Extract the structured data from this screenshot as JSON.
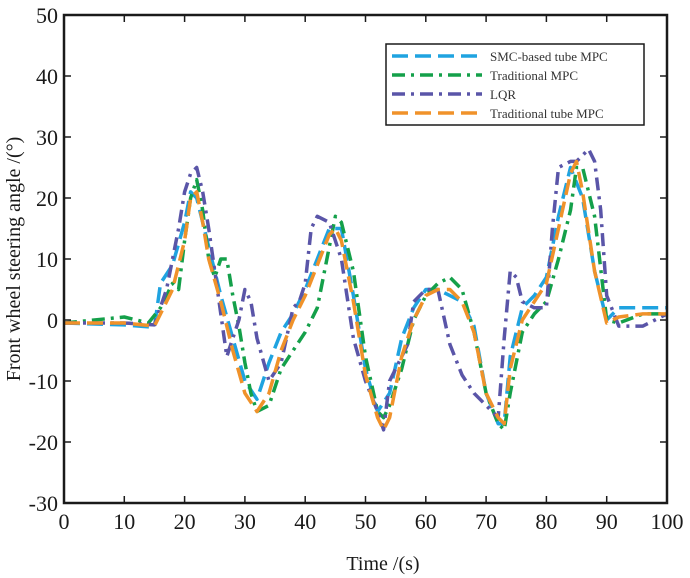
{
  "chart_data": {
    "type": "line",
    "xlabel": "Time /(s)",
    "ylabel": "Front wheel steering angle /(°)",
    "xlim": [
      0,
      100
    ],
    "ylim": [
      -30,
      50
    ],
    "xticks": [
      0,
      10,
      20,
      30,
      40,
      50,
      60,
      70,
      80,
      90,
      100
    ],
    "yticks": [
      -30,
      -20,
      -10,
      0,
      10,
      20,
      30,
      40,
      50
    ],
    "grid": false,
    "legend_position": "top-right",
    "series": [
      {
        "name": "SMC-based tube MPC",
        "color": "#1fa3e0",
        "dash": "long-dash",
        "x": [
          0,
          10,
          15,
          16,
          18,
          20,
          21,
          22,
          24,
          26,
          28,
          30,
          32,
          34,
          36,
          38,
          40,
          42,
          44,
          46,
          48,
          50,
          52,
          54,
          56,
          58,
          60,
          62,
          64,
          66,
          68,
          70,
          72,
          73,
          74,
          76,
          78,
          80,
          82,
          84,
          86,
          88,
          90,
          92,
          96,
          100
        ],
        "y": [
          -0.5,
          -0.8,
          -1.2,
          6,
          9,
          16,
          21,
          20,
          12,
          4,
          -3,
          -10,
          -13,
          -7,
          -2,
          1,
          5,
          10,
          15,
          15,
          4,
          -8,
          -15,
          -12,
          -3,
          2,
          5,
          5,
          4,
          3,
          -1,
          -12,
          -17,
          -17,
          -6,
          2,
          4,
          7,
          17,
          25,
          20,
          8,
          0,
          2,
          2,
          2
        ]
      },
      {
        "name": "Traditional MPC",
        "color": "#14a04a",
        "dash": "dash-dot",
        "x": [
          0,
          10,
          14,
          16,
          18,
          19,
          20,
          21,
          22,
          23,
          24,
          25,
          26,
          27,
          28,
          29,
          30,
          31,
          32,
          34,
          36,
          38,
          40,
          42,
          44,
          45,
          46,
          48,
          50,
          52,
          53,
          54,
          56,
          58,
          60,
          62,
          64,
          66,
          68,
          70,
          72,
          73,
          74,
          76,
          78,
          80,
          82,
          84,
          85,
          86,
          88,
          90,
          92,
          96,
          100
        ],
        "y": [
          -0.5,
          0.5,
          -0.5,
          2,
          6,
          5,
          13,
          20,
          23,
          18,
          10,
          7,
          10,
          10,
          4,
          -1,
          -7,
          -12,
          -15,
          -14,
          -8,
          -5,
          -2,
          2,
          12,
          17,
          16,
          8,
          -6,
          -15,
          -16,
          -14,
          -8,
          0,
          4,
          6,
          7,
          5,
          -2,
          -12,
          -17,
          -18,
          -12,
          -2,
          1,
          3,
          10,
          18,
          25,
          25,
          17,
          0,
          -0.5,
          1,
          1
        ]
      },
      {
        "name": "LQR",
        "color": "#5a55a8",
        "dash": "dash-dot",
        "x": [
          0,
          10,
          15,
          17,
          19,
          20,
          21,
          22,
          23,
          24,
          25,
          26,
          27,
          28,
          29,
          30,
          31,
          32,
          34,
          36,
          38,
          39,
          40,
          41,
          42,
          44,
          46,
          48,
          50,
          52,
          53,
          54,
          56,
          57,
          58,
          60,
          62,
          64,
          66,
          68,
          70,
          72,
          73,
          74,
          75,
          76,
          78,
          80,
          81,
          82,
          84,
          85,
          86,
          87,
          88,
          89,
          90,
          92,
          96,
          100
        ],
        "y": [
          -0.5,
          -0.5,
          -0.8,
          5,
          15,
          21,
          24,
          25,
          21,
          15,
          8,
          1,
          -6,
          -3,
          0,
          5,
          3,
          -3,
          -10,
          -7,
          2,
          3,
          6,
          15,
          17,
          16,
          10,
          -3,
          -10,
          -15,
          -18,
          -10,
          -6,
          -4,
          3,
          5,
          5,
          -4,
          -9,
          -12,
          -14,
          -16,
          -3,
          8,
          7,
          3,
          2,
          2,
          15,
          25,
          26,
          26,
          27,
          28,
          26,
          18,
          4,
          -1,
          -1,
          1
        ]
      },
      {
        "name": "Traditional tube MPC",
        "color": "#f0922a",
        "dash": "long-dash",
        "x": [
          0,
          10,
          15,
          16,
          18,
          20,
          21,
          22,
          23,
          24,
          26,
          28,
          30,
          32,
          34,
          36,
          38,
          40,
          42,
          44,
          45,
          46,
          48,
          50,
          52,
          53,
          54,
          56,
          58,
          60,
          62,
          64,
          66,
          68,
          70,
          72,
          73,
          74,
          76,
          78,
          80,
          82,
          84,
          85,
          86,
          88,
          90,
          92,
          96,
          100
        ],
        "y": [
          -0.5,
          -0.5,
          -1,
          1,
          5,
          13,
          20,
          21,
          16,
          10,
          3,
          -5,
          -12,
          -15,
          -12,
          -5,
          0,
          4,
          9,
          14,
          15,
          13,
          3,
          -9,
          -16,
          -18,
          -16,
          -6,
          0,
          4,
          5,
          5,
          3,
          -2,
          -12,
          -16,
          -17,
          -8,
          0,
          3,
          6,
          15,
          24,
          26,
          21,
          8,
          -0.5,
          0.5,
          1,
          1
        ]
      }
    ]
  }
}
